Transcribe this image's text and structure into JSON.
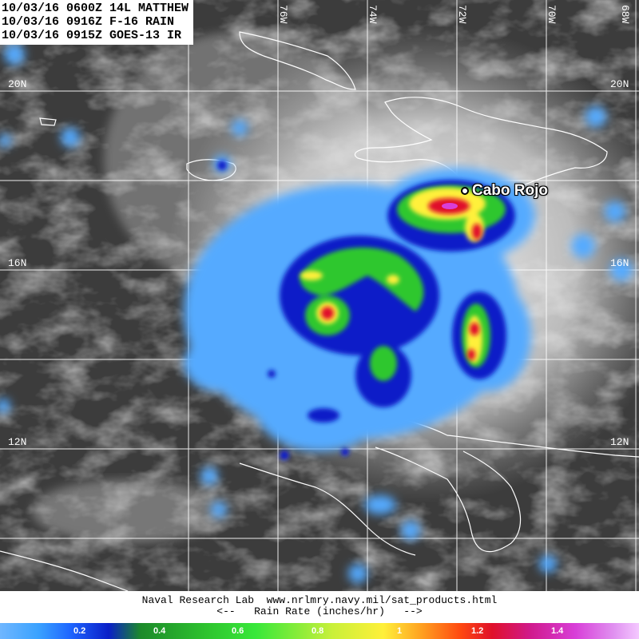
{
  "header": {
    "line1": "10/03/16 0600Z 14L MATTHEW",
    "line2": "10/03/16 0916Z F-16 RAIN",
    "line3": "10/03/16 0915Z GOES-13 IR"
  },
  "latitude_labels": [
    "20N",
    "16N",
    "12N"
  ],
  "longitude_labels": [
    "76W",
    "74W",
    "72W",
    "70W",
    "68W"
  ],
  "place_label": "Cabo Rojo",
  "credit": {
    "line1": "Naval Research Lab  www.nrlmry.navy.mil/sat_products.html",
    "line2": "<--   Rain Rate (inches/hr)   -->"
  },
  "colorbar": {
    "title": "Rain Rate (inches/hr)",
    "ticks": [
      "0.2",
      "0.4",
      "0.6",
      "0.8",
      "1",
      "1.2",
      "1.4"
    ]
  },
  "colors": {
    "light_rain": "#3aa2ff",
    "moderate_rain": "#0a1fc8",
    "heavy_rain": "#2fc72f",
    "very_heavy_rain": "#fff03a",
    "extreme_rain": "#e0102a",
    "peak_rain": "#d83ed8"
  }
}
